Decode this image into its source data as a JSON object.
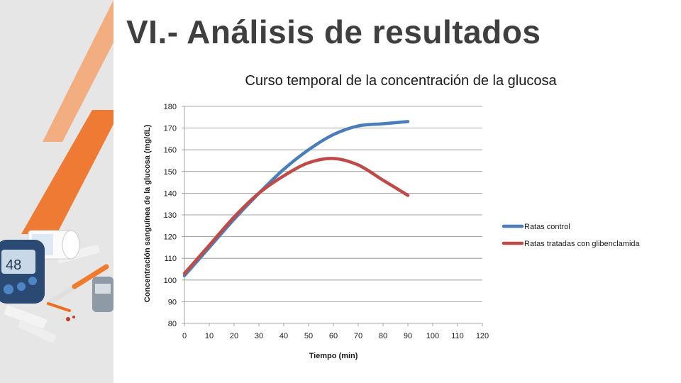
{
  "slide": {
    "title": "VI.- Análisis de resultados"
  },
  "decoration": {
    "image_description": "glucometer, pill bottle, syringe and test strips",
    "stripe_colors": [
      "#f3a26e",
      "#ee7a33",
      "#ea6d20"
    ]
  },
  "chart_data": {
    "type": "line",
    "title": "Curso temporal de la concentración de la glucosa",
    "xlabel": "Tiempo (min)",
    "ylabel": "Concentración sanguínea de la glucosa (mg/dL)",
    "xlim": [
      0,
      120
    ],
    "ylim": [
      80,
      180
    ],
    "xticks": [
      0,
      10,
      20,
      30,
      40,
      50,
      60,
      70,
      80,
      90,
      100,
      110,
      120
    ],
    "yticks": [
      80,
      90,
      100,
      110,
      120,
      130,
      140,
      150,
      160,
      170,
      180
    ],
    "grid": "horizontal",
    "legend_position": "right",
    "series": [
      {
        "name": "Ratas control",
        "color": "#4a7ebb",
        "x": [
          0,
          10,
          20,
          30,
          40,
          50,
          60,
          70,
          80,
          90
        ],
        "y": [
          102,
          115,
          128,
          140,
          151,
          160,
          167,
          171,
          172,
          173
        ]
      },
      {
        "name": "Ratas tratadas con glibenclamida",
        "color": "#be4b48",
        "x": [
          0,
          10,
          20,
          30,
          40,
          50,
          60,
          70,
          80,
          90
        ],
        "y": [
          103,
          116,
          129,
          140,
          148,
          154,
          156,
          153,
          146,
          139
        ]
      }
    ]
  }
}
